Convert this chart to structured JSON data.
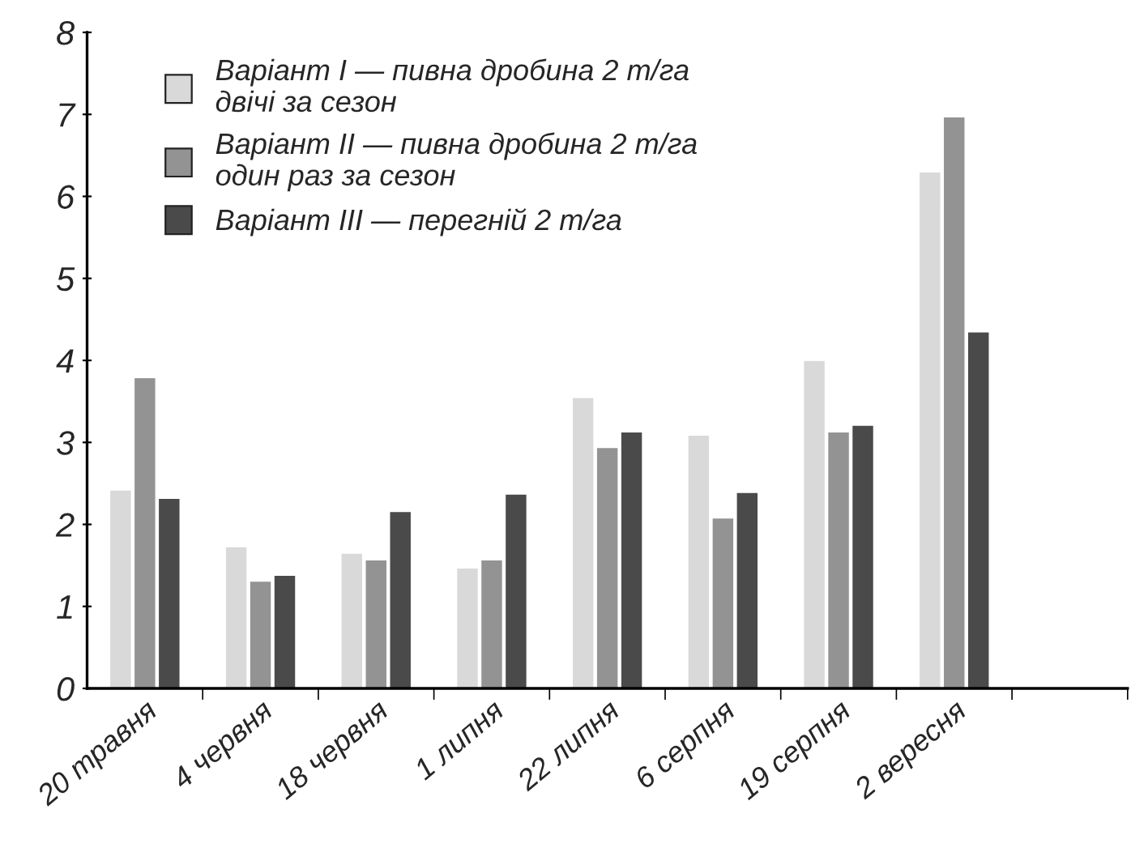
{
  "chart_data": {
    "type": "bar",
    "categories": [
      "20 травня",
      "4 червня",
      "18 червня",
      "1 липня",
      "22 липня",
      "6 серпня",
      "19 серпня",
      "2 вересня",
      null
    ],
    "series": [
      {
        "name": "Варіант I — пивна дробина 2 т/га\nдвічі за сезон",
        "color": "#d9d9d9",
        "values": [
          2.42,
          1.73,
          1.65,
          1.47,
          3.55,
          3.09,
          4.0,
          6.3,
          null
        ]
      },
      {
        "name": "Варіант II — пивна дробина 2 т/га\nодин раз за сезон",
        "color": "#939393",
        "values": [
          3.79,
          1.31,
          1.57,
          1.57,
          2.94,
          2.08,
          3.13,
          6.97,
          null
        ]
      },
      {
        "name": "Варіант III — перегній 2 т/га",
        "color": "#4a4a4a",
        "values": [
          2.32,
          1.38,
          2.16,
          2.37,
          3.13,
          2.39,
          3.21,
          4.35,
          null
        ]
      }
    ],
    "ylim": [
      0,
      8
    ],
    "yticks": [
      0,
      1,
      2,
      3,
      4,
      5,
      6,
      7,
      8
    ],
    "grid": false,
    "legend": "top left"
  }
}
